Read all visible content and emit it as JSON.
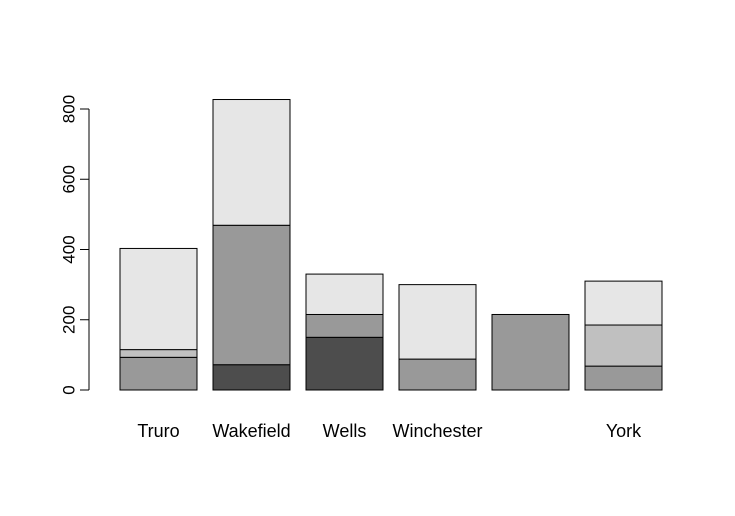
{
  "chart_data": {
    "type": "bar",
    "stacked": true,
    "categories": [
      "Truro",
      "Wakefield",
      "Wells",
      "Winchester",
      "",
      "York"
    ],
    "series": [
      {
        "color": "#4d4d4d",
        "values": [
          0,
          72,
          150,
          0,
          0,
          0
        ]
      },
      {
        "color": "#999999",
        "values": [
          93,
          397,
          65,
          88,
          215,
          68
        ]
      },
      {
        "color": "#c0c0c0",
        "values": [
          22,
          0,
          0,
          0,
          0,
          117
        ]
      },
      {
        "color": "#e6e6e6",
        "values": [
          288,
          358,
          115,
          212,
          0,
          125
        ]
      }
    ],
    "yticks": [
      0,
      200,
      400,
      600,
      800
    ],
    "ylim": [
      0,
      830
    ],
    "title": "",
    "xlabel": "",
    "ylabel": "",
    "grid": false,
    "legend": "none"
  }
}
